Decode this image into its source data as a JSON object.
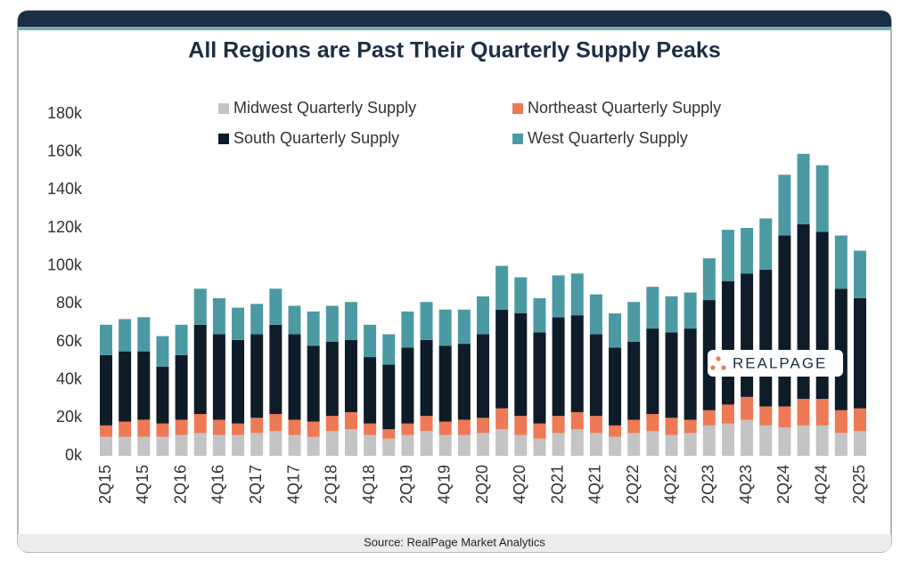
{
  "chart_data": {
    "type": "stacked-bar",
    "title": "All Regions are Past Their Quarterly Supply Peaks",
    "source": "Source: RealPage Market Analytics",
    "logo": "REALPAGE",
    "categories": [
      "2Q15",
      null,
      "4Q15",
      null,
      "2Q16",
      null,
      "4Q16",
      null,
      "2Q17",
      null,
      "4Q17",
      null,
      "2Q18",
      null,
      "4Q18",
      null,
      "2Q19",
      null,
      "4Q19",
      null,
      "2Q20",
      null,
      "4Q20",
      null,
      "2Q21",
      null,
      "4Q21",
      null,
      "2Q22",
      null,
      "4Q22",
      null,
      "2Q23",
      null,
      "4Q23",
      null,
      "2Q24",
      null,
      "4Q24",
      null,
      "2Q25"
    ],
    "series": [
      {
        "name": "Midwest Quarterly Supply",
        "color": "#c4c4c4",
        "values": [
          10000,
          10000,
          10000,
          10000,
          11000,
          12000,
          11000,
          11000,
          12000,
          13000,
          11000,
          10000,
          13000,
          14000,
          11000,
          9000,
          11000,
          13000,
          11000,
          11000,
          12000,
          14000,
          11000,
          9000,
          12000,
          14000,
          12000,
          10000,
          12000,
          13000,
          11000,
          12000,
          16000,
          17000,
          19000,
          16000,
          15000,
          16000,
          16000,
          12000,
          13000
        ]
      },
      {
        "name": "Northeast Quarterly Supply",
        "color": "#ee7955",
        "values": [
          6000,
          8000,
          9000,
          7000,
          8000,
          10000,
          8000,
          6000,
          8000,
          9000,
          8000,
          8000,
          8000,
          9000,
          6000,
          5000,
          6000,
          8000,
          7000,
          8000,
          8000,
          11000,
          10000,
          8000,
          9000,
          9000,
          9000,
          6000,
          7000,
          9000,
          9000,
          7000,
          8000,
          10000,
          12000,
          10000,
          11000,
          14000,
          14000,
          12000,
          12000
        ]
      },
      {
        "name": "South Quarterly Supply",
        "color": "#0e1c29",
        "values": [
          37000,
          37000,
          36000,
          30000,
          34000,
          47000,
          45000,
          44000,
          44000,
          47000,
          45000,
          40000,
          39000,
          38000,
          35000,
          34000,
          40000,
          40000,
          40000,
          40000,
          44000,
          52000,
          54000,
          48000,
          52000,
          51000,
          43000,
          41000,
          41000,
          45000,
          45000,
          48000,
          58000,
          65000,
          65000,
          72000,
          90000,
          92000,
          88000,
          64000,
          58000
        ]
      },
      {
        "name": "West Quarterly Supply",
        "color": "#4b9aa3",
        "values": [
          16000,
          17000,
          18000,
          16000,
          16000,
          19000,
          19000,
          17000,
          16000,
          19000,
          15000,
          18000,
          19000,
          20000,
          17000,
          16000,
          19000,
          20000,
          19000,
          18000,
          20000,
          23000,
          19000,
          18000,
          22000,
          22000,
          21000,
          18000,
          21000,
          22000,
          19000,
          19000,
          22000,
          27000,
          24000,
          27000,
          32000,
          37000,
          35000,
          28000,
          25000
        ]
      }
    ],
    "ylim": [
      0,
      180000
    ],
    "yticks": [
      {
        "value": 0,
        "label": "0k"
      },
      {
        "value": 20000,
        "label": "20k"
      },
      {
        "value": 40000,
        "label": "40k"
      },
      {
        "value": 60000,
        "label": "60k"
      },
      {
        "value": 80000,
        "label": "80k"
      },
      {
        "value": 100000,
        "label": "100k"
      },
      {
        "value": 120000,
        "label": "120k"
      },
      {
        "value": 140000,
        "label": "140k"
      },
      {
        "value": 160000,
        "label": "160k"
      },
      {
        "value": 180000,
        "label": "180k"
      }
    ],
    "grid": false
  }
}
